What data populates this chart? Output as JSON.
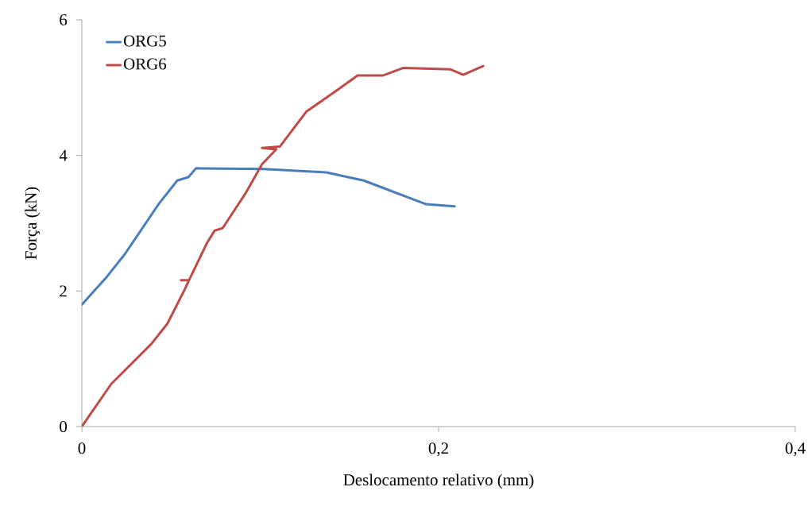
{
  "chart_data": {
    "type": "line",
    "xlabel": "Deslocamento relativo (mm)",
    "ylabel": "Força (kN)",
    "xlim": [
      0,
      0.4
    ],
    "ylim": [
      0,
      6
    ],
    "xticks": [
      {
        "value": 0,
        "label": "0"
      },
      {
        "value": 0.2,
        "label": "0,2"
      },
      {
        "value": 0.4,
        "label": "0,4"
      }
    ],
    "yticks": [
      0,
      2,
      4,
      6
    ],
    "grid": false,
    "legend": "top left",
    "marker": "none",
    "line_style": "solid",
    "series": [
      {
        "name": "ORG5",
        "color": "#4a7ebb",
        "x": [
          0,
          0.0134,
          0.024,
          0.043,
          0.0535,
          0.0597,
          0.064,
          0.102,
          0.137,
          0.158,
          0.193,
          0.209
        ],
        "values": [
          1.8,
          2.19,
          2.54,
          3.28,
          3.63,
          3.68,
          3.81,
          3.8,
          3.75,
          3.63,
          3.28,
          3.25
        ]
      },
      {
        "name": "ORG6",
        "color": "#be4b48",
        "x": [
          0,
          0.0165,
          0.039,
          0.048,
          0.058,
          0.0601,
          0.0556,
          0.0601,
          0.07,
          0.0744,
          0.079,
          0.092,
          0.101,
          0.109,
          0.101,
          0.111,
          0.126,
          0.1425,
          0.1546,
          0.169,
          0.18,
          0.2067,
          0.2138,
          0.225
        ],
        "values": [
          0,
          0.63,
          1.22,
          1.52,
          2.04,
          2.16,
          2.16,
          2.16,
          2.7,
          2.89,
          2.93,
          3.45,
          3.87,
          4.09,
          4.11,
          4.13,
          4.65,
          4.95,
          5.18,
          5.18,
          5.29,
          5.27,
          5.19,
          5.32
        ]
      }
    ]
  }
}
